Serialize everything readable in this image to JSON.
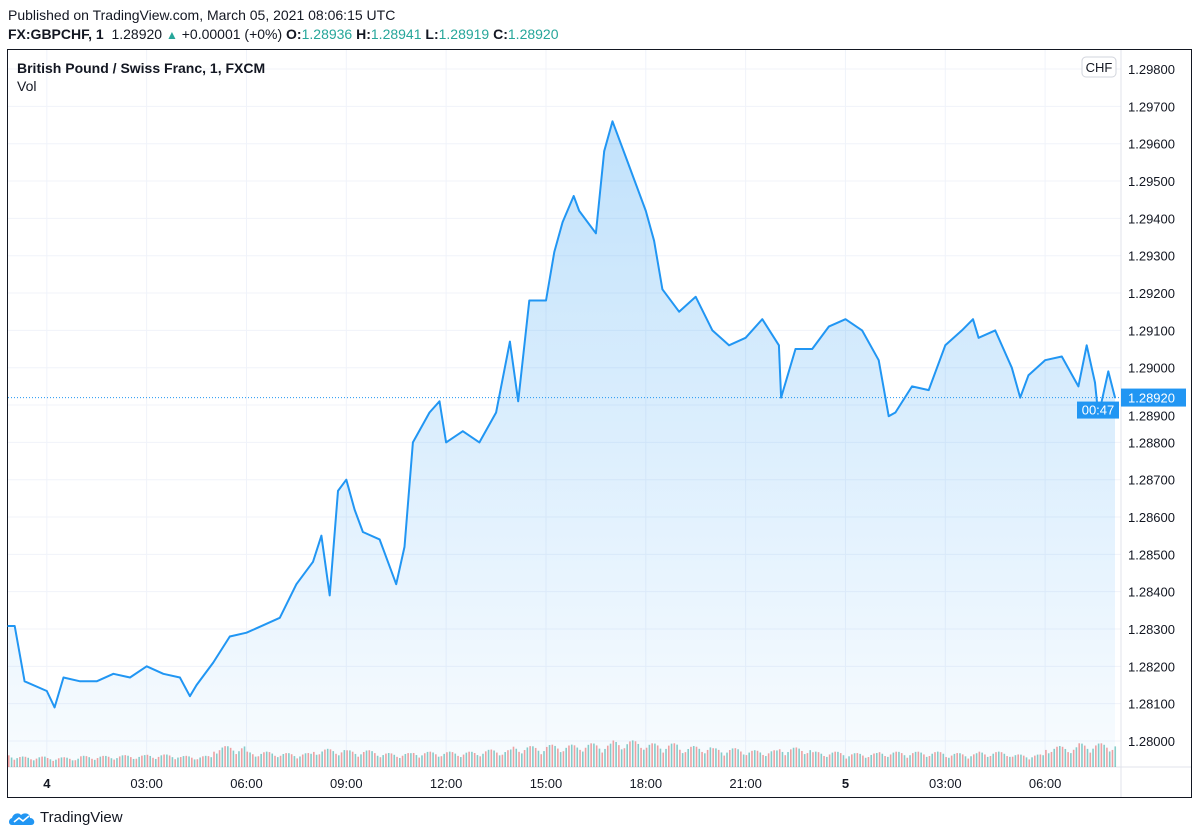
{
  "header": {
    "published": "Published on TradingView.com, March 05, 2021 08:06:15 UTC",
    "symbol": "FX:GBPCHF, 1",
    "last": "1.28920",
    "change": "+0.00001 (+0%)",
    "open_label": "O:",
    "open": "1.28936",
    "high_label": "H:",
    "high": "1.28941",
    "low_label": "L:",
    "low": "1.28919",
    "close_label": "C:",
    "close": "1.28920"
  },
  "legend": {
    "title": "British Pound / Swiss Franc, 1, FXCM",
    "volume": "Vol"
  },
  "currency_badge": "CHF",
  "price_tag": {
    "price": "1.28920",
    "countdown": "00:47"
  },
  "footer": {
    "brand": "TradingView"
  },
  "colors": {
    "line": "#2196f3",
    "up": "#26a69a",
    "down": "#ef5350",
    "price_tag": "#2196f3"
  },
  "chart_data": {
    "type": "area",
    "title": "British Pound / Swiss Franc, 1, FXCM",
    "ylim": [
      1.2793,
      1.299
    ],
    "xlim": [
      "2021-03-03T22:50",
      "2021-03-05T08:06"
    ],
    "y_ticks": [
      "1.28000",
      "1.28100",
      "1.28200",
      "1.28300",
      "1.28400",
      "1.28500",
      "1.28600",
      "1.28700",
      "1.28800",
      "1.28900",
      "1.29000",
      "1.29100",
      "1.29200",
      "1.29300",
      "1.29400",
      "1.29500",
      "1.29600",
      "1.29700",
      "1.29800"
    ],
    "x_ticks": [
      {
        "t": "2021-03-04T00:00",
        "label": "4",
        "bold": true
      },
      {
        "t": "2021-03-04T03:00",
        "label": "03:00"
      },
      {
        "t": "2021-03-04T06:00",
        "label": "06:00"
      },
      {
        "t": "2021-03-04T09:00",
        "label": "09:00"
      },
      {
        "t": "2021-03-04T12:00",
        "label": "12:00"
      },
      {
        "t": "2021-03-04T15:00",
        "label": "15:00"
      },
      {
        "t": "2021-03-04T18:00",
        "label": "18:00"
      },
      {
        "t": "2021-03-04T21:00",
        "label": "21:00"
      },
      {
        "t": "2021-03-05T00:00",
        "label": "5",
        "bold": true
      },
      {
        "t": "2021-03-05T03:00",
        "label": "03:00"
      },
      {
        "t": "2021-03-05T06:00",
        "label": "06:00"
      }
    ],
    "grid": true,
    "last_price": 1.2892,
    "series": [
      {
        "points": [
          [
            "2021-03-03T22:50",
            1.28308
          ],
          [
            "2021-03-03T23:02",
            1.28308
          ],
          [
            "2021-03-03T23:20",
            1.2816
          ],
          [
            "2021-03-04T00:00",
            1.28134
          ],
          [
            "2021-03-04T00:14",
            1.2809
          ],
          [
            "2021-03-04T00:30",
            1.2817
          ],
          [
            "2021-03-04T01:00",
            1.2816
          ],
          [
            "2021-03-04T01:30",
            1.2816
          ],
          [
            "2021-03-04T02:00",
            1.2818
          ],
          [
            "2021-03-04T02:30",
            1.2817
          ],
          [
            "2021-03-04T03:00",
            1.282
          ],
          [
            "2021-03-04T03:30",
            1.2818
          ],
          [
            "2021-03-04T04:00",
            1.2817
          ],
          [
            "2021-03-04T04:18",
            1.2812
          ],
          [
            "2021-03-04T04:30",
            1.2815
          ],
          [
            "2021-03-04T05:00",
            1.2821
          ],
          [
            "2021-03-04T05:30",
            1.2828
          ],
          [
            "2021-03-04T06:00",
            1.2829
          ],
          [
            "2021-03-04T06:30",
            1.2831
          ],
          [
            "2021-03-04T07:00",
            1.2833
          ],
          [
            "2021-03-04T07:30",
            1.2842
          ],
          [
            "2021-03-04T08:00",
            1.2848
          ],
          [
            "2021-03-04T08:15",
            1.2855
          ],
          [
            "2021-03-04T08:30",
            1.2839
          ],
          [
            "2021-03-04T08:45",
            1.2867
          ],
          [
            "2021-03-04T09:00",
            1.287
          ],
          [
            "2021-03-04T09:15",
            1.2862
          ],
          [
            "2021-03-04T09:30",
            1.2856
          ],
          [
            "2021-03-04T10:00",
            1.2854
          ],
          [
            "2021-03-04T10:30",
            1.2842
          ],
          [
            "2021-03-04T10:45",
            1.2852
          ],
          [
            "2021-03-04T11:00",
            1.288
          ],
          [
            "2021-03-04T11:30",
            1.2888
          ],
          [
            "2021-03-04T11:48",
            1.2891
          ],
          [
            "2021-03-04T12:00",
            1.288
          ],
          [
            "2021-03-04T12:30",
            1.2883
          ],
          [
            "2021-03-04T13:00",
            1.288
          ],
          [
            "2021-03-04T13:30",
            1.2888
          ],
          [
            "2021-03-04T13:55",
            1.2907
          ],
          [
            "2021-03-04T14:10",
            1.2891
          ],
          [
            "2021-03-04T14:30",
            1.2918
          ],
          [
            "2021-03-04T15:00",
            1.2918
          ],
          [
            "2021-03-04T15:15",
            1.2931
          ],
          [
            "2021-03-04T15:30",
            1.2939
          ],
          [
            "2021-03-04T15:50",
            1.2946
          ],
          [
            "2021-03-04T16:00",
            1.2942
          ],
          [
            "2021-03-04T16:30",
            1.2936
          ],
          [
            "2021-03-04T16:45",
            1.2958
          ],
          [
            "2021-03-04T17:00",
            1.2966
          ],
          [
            "2021-03-04T17:30",
            1.2954
          ],
          [
            "2021-03-04T18:00",
            1.2942
          ],
          [
            "2021-03-04T18:15",
            1.2934
          ],
          [
            "2021-03-04T18:30",
            1.2921
          ],
          [
            "2021-03-04T19:00",
            1.2915
          ],
          [
            "2021-03-04T19:30",
            1.2919
          ],
          [
            "2021-03-04T20:00",
            1.291
          ],
          [
            "2021-03-04T20:30",
            1.2906
          ],
          [
            "2021-03-04T21:00",
            1.2908
          ],
          [
            "2021-03-04T21:30",
            1.2913
          ],
          [
            "2021-03-04T22:00",
            1.2906
          ],
          [
            "2021-03-04T22:04",
            1.2892
          ],
          [
            "2021-03-04T22:30",
            1.2905
          ],
          [
            "2021-03-04T23:00",
            1.2905
          ],
          [
            "2021-03-04T23:30",
            1.2911
          ],
          [
            "2021-03-05T00:00",
            1.2913
          ],
          [
            "2021-03-05T00:30",
            1.291
          ],
          [
            "2021-03-05T01:00",
            1.2902
          ],
          [
            "2021-03-05T01:18",
            1.2887
          ],
          [
            "2021-03-05T01:30",
            1.2888
          ],
          [
            "2021-03-05T02:00",
            1.2895
          ],
          [
            "2021-03-05T02:30",
            1.2894
          ],
          [
            "2021-03-05T03:00",
            1.2906
          ],
          [
            "2021-03-05T03:30",
            1.291
          ],
          [
            "2021-03-05T03:50",
            1.2913
          ],
          [
            "2021-03-05T04:00",
            1.2908
          ],
          [
            "2021-03-05T04:30",
            1.291
          ],
          [
            "2021-03-05T05:00",
            1.29
          ],
          [
            "2021-03-05T05:15",
            1.2892
          ],
          [
            "2021-03-05T05:30",
            1.2898
          ],
          [
            "2021-03-05T06:00",
            1.2902
          ],
          [
            "2021-03-05T06:30",
            1.2903
          ],
          [
            "2021-03-05T07:00",
            1.2895
          ],
          [
            "2021-03-05T07:15",
            1.2906
          ],
          [
            "2021-03-05T07:30",
            1.2896
          ],
          [
            "2021-03-05T07:36",
            1.2887
          ],
          [
            "2021-03-05T07:54",
            1.2899
          ],
          [
            "2021-03-05T08:06",
            1.2892
          ]
        ]
      }
    ],
    "volume_hourly_relative": [
      20,
      15,
      14,
      16,
      17,
      18,
      16,
      30,
      22,
      20,
      26,
      24,
      20,
      22,
      22,
      25,
      30,
      32,
      34,
      38,
      34,
      30,
      27,
      24,
      28,
      22,
      20,
      22,
      22,
      20,
      22,
      18,
      30,
      34
    ]
  }
}
